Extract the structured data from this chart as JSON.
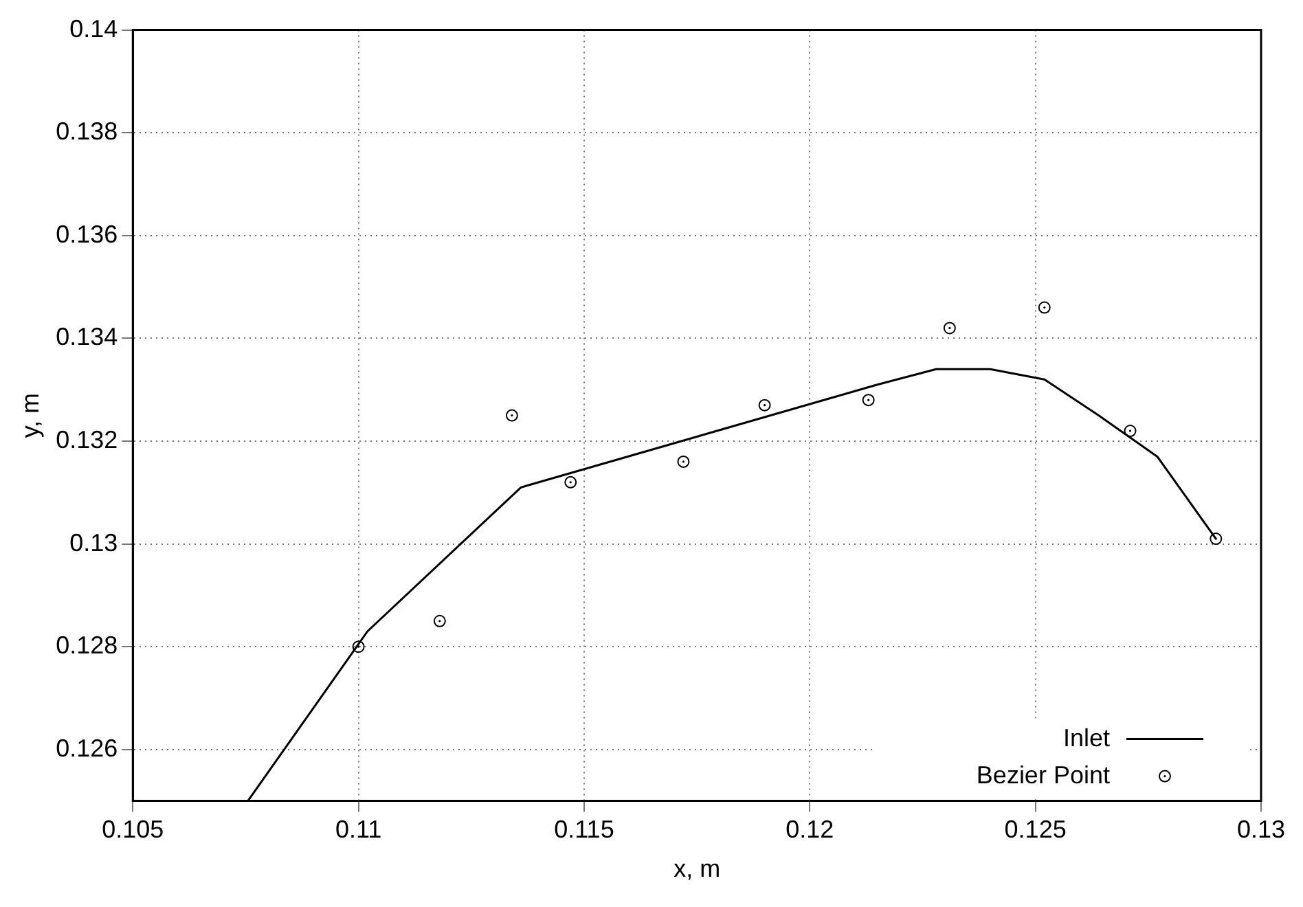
{
  "chart_data": {
    "type": "line",
    "xlabel": "x, m",
    "ylabel": "y, m",
    "xlim": [
      0.105,
      0.13
    ],
    "xticks": [
      0.105,
      0.11,
      0.115,
      0.12,
      0.125,
      0.13
    ],
    "ylim": [
      0.125,
      0.14
    ],
    "yticks": [
      0.126,
      0.128,
      0.13,
      0.132,
      0.134,
      0.136,
      0.138,
      0.14
    ],
    "grid": true,
    "legend": "bottom right",
    "series": [
      {
        "name": "Inlet",
        "color": "#000000",
        "marker": "none",
        "line_style": "solid",
        "x": [
          0.10755,
          0.1102,
          0.1136,
          0.1215,
          0.1228,
          0.124,
          0.1252,
          0.1264,
          0.1277,
          0.129
        ],
        "values": [
          0.125,
          0.1283,
          0.1311,
          0.1331,
          0.1334,
          0.1334,
          0.1332,
          0.1325,
          0.1317,
          0.1301
        ]
      },
      {
        "name": "Bezier Point",
        "type": "scatter",
        "color": "#000000",
        "marker": "circle",
        "x": [
          0.11,
          0.1118,
          0.1134,
          0.1147,
          0.1172,
          0.119,
          0.1213,
          0.1231,
          0.1252,
          0.1271,
          0.129
        ],
        "values": [
          0.128,
          0.1285,
          0.1325,
          0.1312,
          0.1316,
          0.1327,
          0.1328,
          0.1342,
          0.1346,
          0.1322,
          0.1301
        ]
      }
    ]
  }
}
